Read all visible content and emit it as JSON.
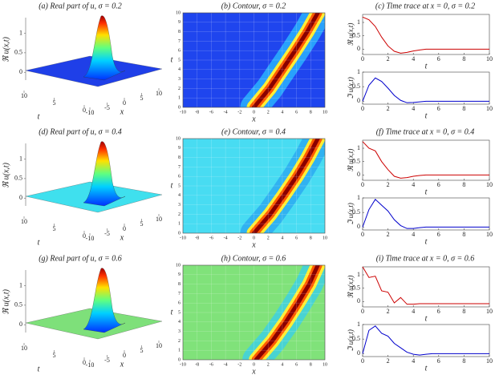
{
  "chart_data": [
    {
      "type": "surface",
      "title": "(a) Real part of u, σ = 0.2",
      "zlabel": "ℜ u(x,t)",
      "xlabel": "x",
      "ylabel": "t",
      "zlim": [
        -0.2,
        1.4
      ],
      "zticks": [
        0,
        0.5,
        1
      ],
      "tlim": [
        0,
        10
      ],
      "tticks": [
        0,
        5,
        10
      ],
      "xlim": [
        -10,
        10
      ],
      "xticks": [
        -10,
        -5,
        0,
        5,
        10
      ],
      "plane_color": "#1f3fe8"
    },
    {
      "type": "contour",
      "title": "(b) Contour, σ = 0.2",
      "xlabel": "x",
      "ylabel": "t",
      "xlim": [
        -10,
        10
      ],
      "xticks": [
        -10,
        -8,
        -6,
        -4,
        -2,
        0,
        2,
        4,
        6,
        8,
        10
      ],
      "ylim": [
        0,
        10
      ],
      "yticks": [
        0,
        1,
        2,
        3,
        4,
        5,
        6,
        7,
        8,
        9,
        10
      ],
      "grid": true,
      "background": "#1f45ee",
      "ridge_colors": [
        "#2ab8ff",
        "#ffee33",
        "#ff5a00",
        "#8a0000"
      ],
      "ridge": {
        "t": [
          0,
          2,
          4,
          6,
          8,
          10
        ],
        "x": [
          0,
          2.2,
          4,
          5.8,
          7.5,
          9
        ]
      }
    },
    {
      "type": "line",
      "title": "(c) Time trace at x = 0, σ = 0.2",
      "xlabel": "t",
      "xlim": [
        0,
        10
      ],
      "xticks": [
        0,
        2,
        4,
        6,
        8,
        10
      ],
      "x": [
        0,
        0.5,
        1,
        1.5,
        2,
        2.5,
        3,
        3.5,
        4,
        4.5,
        5,
        5.5,
        6,
        6.5,
        7,
        7.5,
        8,
        8.5,
        9,
        9.5,
        10
      ],
      "panels": [
        {
          "ylabel": "ℜ u(x,t)",
          "ylim": [
            -0.2,
            1.3
          ],
          "yticks": [
            0,
            0.5,
            1
          ],
          "color": "#cc0000",
          "values": [
            1.2,
            1.1,
            0.85,
            0.45,
            0.12,
            -0.08,
            -0.15,
            -0.12,
            -0.07,
            -0.03,
            0,
            0,
            0,
            0,
            0,
            0,
            0,
            0,
            0,
            0,
            0
          ]
        },
        {
          "ylabel": "ℑ u(x,t)",
          "ylim": [
            -0.1,
            1
          ],
          "yticks": [
            0,
            0.5,
            1
          ],
          "color": "#0000cc",
          "values": [
            0,
            0.55,
            0.8,
            0.68,
            0.45,
            0.2,
            0.03,
            -0.05,
            -0.04,
            -0.02,
            0,
            0,
            0,
            0,
            0,
            0,
            0,
            0,
            0,
            0,
            0
          ]
        }
      ]
    },
    {
      "type": "surface",
      "title": "(d) Real part of u, σ = 0.4",
      "zlabel": "ℜ u(x,t)",
      "xlabel": "x",
      "ylabel": "t",
      "zlim": [
        -0.2,
        1.4
      ],
      "zticks": [
        0,
        0.5,
        1
      ],
      "tlim": [
        0,
        10
      ],
      "tticks": [
        0,
        5,
        10
      ],
      "xlim": [
        -10,
        10
      ],
      "xticks": [
        -10,
        -5,
        0,
        5,
        10
      ],
      "plane_color": "#3fe0ee"
    },
    {
      "type": "contour",
      "title": "(e) Contour, σ = 0.4",
      "xlabel": "x",
      "ylabel": "t",
      "xlim": [
        -10,
        10
      ],
      "xticks": [
        -10,
        -8,
        -6,
        -4,
        -2,
        0,
        2,
        4,
        6,
        8,
        10
      ],
      "ylim": [
        0,
        10
      ],
      "yticks": [
        0,
        1,
        2,
        3,
        4,
        5,
        6,
        7,
        8,
        9,
        10
      ],
      "grid": true,
      "background": "#48dcf2",
      "ridge_colors": [
        "#2aa8f0",
        "#ffee33",
        "#ff5a00",
        "#8a0000"
      ],
      "ridge": {
        "t": [
          0,
          2,
          4,
          6,
          8,
          10
        ],
        "x": [
          0,
          2.3,
          4.2,
          6,
          7.6,
          9
        ]
      }
    },
    {
      "type": "line",
      "title": "(f) Time trace at x = 0, σ = 0.4",
      "xlabel": "t",
      "xlim": [
        0,
        10
      ],
      "xticks": [
        0,
        2,
        4,
        6,
        8,
        10
      ],
      "x": [
        0,
        0.5,
        1,
        1.5,
        2,
        2.5,
        3,
        3.5,
        4,
        4.5,
        5,
        5.5,
        6,
        6.5,
        7,
        7.5,
        8,
        8.5,
        9,
        9.5,
        10
      ],
      "panels": [
        {
          "ylabel": "ℜ u(x,t)",
          "ylim": [
            -0.2,
            1.3
          ],
          "yticks": [
            0,
            0.5,
            1
          ],
          "color": "#cc0000",
          "values": [
            1.25,
            1.0,
            0.9,
            0.5,
            0.2,
            -0.05,
            -0.12,
            -0.1,
            -0.05,
            -0.02,
            0,
            0,
            0,
            0,
            0,
            0,
            0,
            0,
            0,
            0,
            0
          ]
        },
        {
          "ylabel": "ℑ u(x,t)",
          "ylim": [
            -0.1,
            1
          ],
          "yticks": [
            0,
            0.5,
            1
          ],
          "color": "#0000cc",
          "values": [
            0,
            0.6,
            0.95,
            0.75,
            0.55,
            0.25,
            0.05,
            -0.05,
            -0.05,
            -0.02,
            0,
            0,
            0,
            0,
            0,
            0,
            0,
            0,
            0,
            0,
            0
          ]
        }
      ]
    },
    {
      "type": "surface",
      "title": "(g) Real part of u, σ = 0.6",
      "zlabel": "ℜ u(x,t)",
      "xlabel": "x",
      "ylabel": "t",
      "zlim": [
        -0.2,
        1.4
      ],
      "zticks": [
        0,
        0.5,
        1
      ],
      "tlim": [
        0,
        10
      ],
      "tticks": [
        0,
        5,
        10
      ],
      "xlim": [
        -10,
        10
      ],
      "xticks": [
        -10,
        -5,
        0,
        5,
        10
      ],
      "plane_color": "#7ee07a"
    },
    {
      "type": "contour",
      "title": "(h) Contour, σ = 0.6",
      "xlabel": "x",
      "ylabel": "t",
      "xlim": [
        -10,
        10
      ],
      "xticks": [
        -10,
        -8,
        -6,
        -4,
        -2,
        0,
        2,
        4,
        6,
        8,
        10
      ],
      "ylim": [
        0,
        10
      ],
      "yticks": [
        0,
        1,
        2,
        3,
        4,
        5,
        6,
        7,
        8,
        9,
        10
      ],
      "grid": true,
      "background": "#80e27a",
      "ridge_colors": [
        "#3ad0e8",
        "#ffee33",
        "#ff5a00",
        "#8a0000"
      ],
      "ridge": {
        "t": [
          0,
          2,
          4,
          6,
          8,
          10
        ],
        "x": [
          0.3,
          2.6,
          4.5,
          6.2,
          7.8,
          9
        ]
      }
    },
    {
      "type": "line",
      "title": "(i) Time trace at x = 0, σ = 0.6",
      "xlabel": "t",
      "xlim": [
        0,
        10
      ],
      "xticks": [
        0,
        2,
        4,
        6,
        8,
        10
      ],
      "x": [
        0,
        0.5,
        1,
        1.5,
        2,
        2.5,
        3,
        3.5,
        4,
        4.5,
        5,
        5.5,
        6,
        6.5,
        7,
        7.5,
        8,
        8.5,
        9,
        9.5,
        10
      ],
      "panels": [
        {
          "ylabel": "ℜ u(x,t)",
          "ylim": [
            -0.2,
            1.3
          ],
          "yticks": [
            0,
            0.5,
            1
          ],
          "color": "#cc0000",
          "values": [
            1.3,
            0.9,
            0.95,
            0.4,
            0.35,
            -0.05,
            0.15,
            -0.1,
            -0.1,
            -0.08,
            -0.08,
            -0.08,
            -0.08,
            -0.08,
            -0.08,
            -0.08,
            -0.08,
            -0.08,
            -0.08,
            -0.08,
            -0.08
          ]
        },
        {
          "ylabel": "ℑ u(x,t)",
          "ylim": [
            -0.1,
            1
          ],
          "yticks": [
            0,
            0.5,
            1
          ],
          "color": "#0000cc",
          "values": [
            0,
            0.8,
            0.95,
            0.7,
            0.6,
            0.35,
            0.2,
            0.05,
            -0.02,
            -0.05,
            -0.02,
            0,
            0,
            0,
            0,
            0,
            0,
            0,
            0,
            0,
            0
          ]
        }
      ]
    }
  ]
}
